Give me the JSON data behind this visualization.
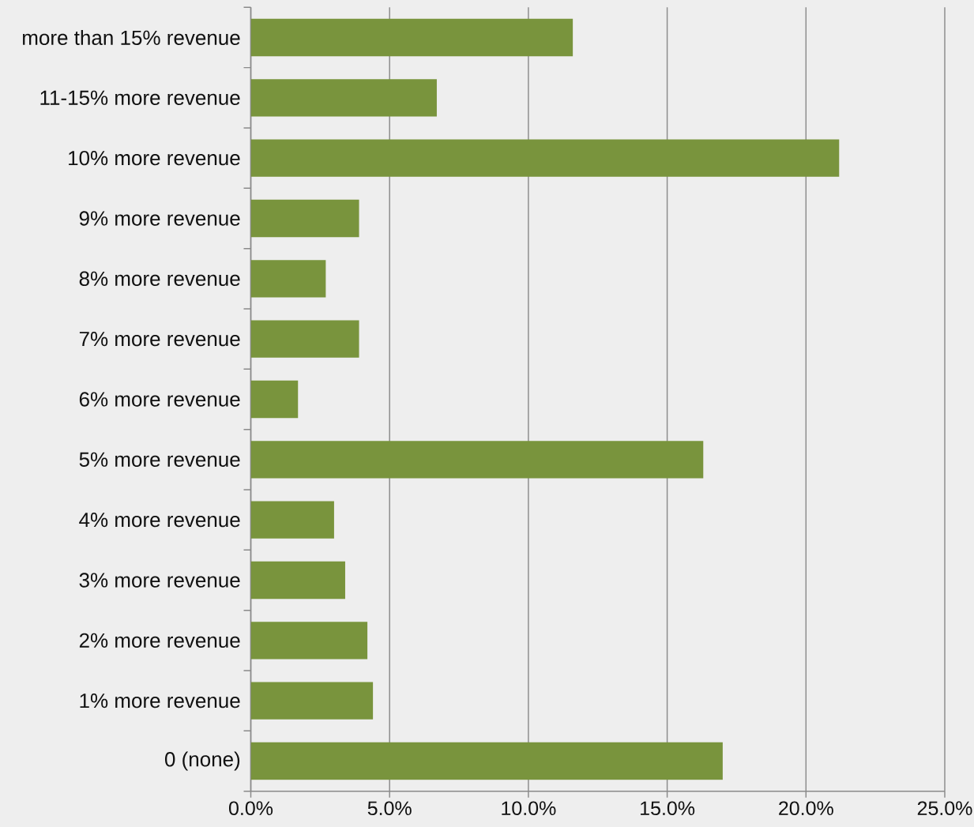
{
  "chart_data": {
    "type": "bar",
    "orientation": "horizontal",
    "categories": [
      "more than 15% revenue",
      "11-15% more revenue",
      "10% more revenue",
      "9% more revenue",
      "8% more revenue",
      "7% more revenue",
      "6% more revenue",
      "5% more revenue",
      "4% more revenue",
      "3% more revenue",
      "2% more revenue",
      "1% more revenue",
      "0 (none)"
    ],
    "values": [
      11.6,
      6.7,
      21.2,
      3.9,
      2.7,
      3.9,
      1.7,
      16.3,
      3.0,
      3.4,
      4.2,
      4.4,
      17.0
    ],
    "color": "#79943d",
    "xlim": [
      0,
      25
    ],
    "xticks": [
      {
        "value": 0,
        "label": "0.0%"
      },
      {
        "value": 5,
        "label": "5.0%"
      },
      {
        "value": 10,
        "label": "10.0%"
      },
      {
        "value": 15,
        "label": "15.0%"
      },
      {
        "value": 20,
        "label": "20.0%"
      },
      {
        "value": 25,
        "label": "25.0%"
      }
    ],
    "grid": "x"
  }
}
